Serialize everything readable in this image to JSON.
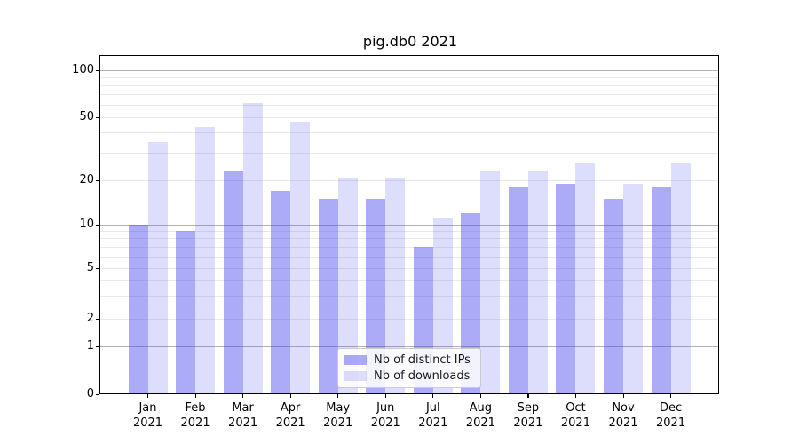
{
  "title": "pig.db0 2021",
  "chart_data": {
    "type": "bar",
    "title": "pig.db0 2021",
    "categories": [
      {
        "month": "Jan",
        "year": "2021"
      },
      {
        "month": "Feb",
        "year": "2021"
      },
      {
        "month": "Mar",
        "year": "2021"
      },
      {
        "month": "Apr",
        "year": "2021"
      },
      {
        "month": "May",
        "year": "2021"
      },
      {
        "month": "Jun",
        "year": "2021"
      },
      {
        "month": "Jul",
        "year": "2021"
      },
      {
        "month": "Aug",
        "year": "2021"
      },
      {
        "month": "Sep",
        "year": "2021"
      },
      {
        "month": "Oct",
        "year": "2021"
      },
      {
        "month": "Nov",
        "year": "2021"
      },
      {
        "month": "Dec",
        "year": "2021"
      }
    ],
    "series": [
      {
        "name": "Nb of distinct IPs",
        "values": [
          10,
          9,
          23,
          17,
          15,
          15,
          7,
          12,
          18,
          19,
          15,
          18
        ],
        "color": "rgba(68,68,238,0.45)"
      },
      {
        "name": "Nb of downloads",
        "values": [
          35,
          44,
          62,
          47,
          21,
          21,
          11,
          23,
          23,
          26,
          19,
          26
        ],
        "color": "rgba(68,68,238,0.18)"
      }
    ],
    "y_axis": {
      "scale": "symlog",
      "tick_labels": [
        100,
        50,
        20,
        10,
        5,
        2,
        1,
        0
      ],
      "major_gridlines": [
        1,
        10,
        100
      ],
      "minor_gridlines": [
        2,
        3,
        4,
        5,
        6,
        7,
        8,
        9,
        20,
        30,
        40,
        50,
        60,
        70,
        80,
        90
      ],
      "ylim_bottom": 0,
      "ylim_top": 125
    },
    "x_axis": {
      "year_line": "2021"
    },
    "legend": {
      "position": "lower center",
      "items": [
        "Nb of distinct IPs",
        "Nb of downloads"
      ]
    },
    "colors": {
      "bar_base": "#4444ee",
      "major_grid": "#b3b3b3",
      "minor_grid": "#e9e9e9",
      "spine": "#000000"
    }
  }
}
